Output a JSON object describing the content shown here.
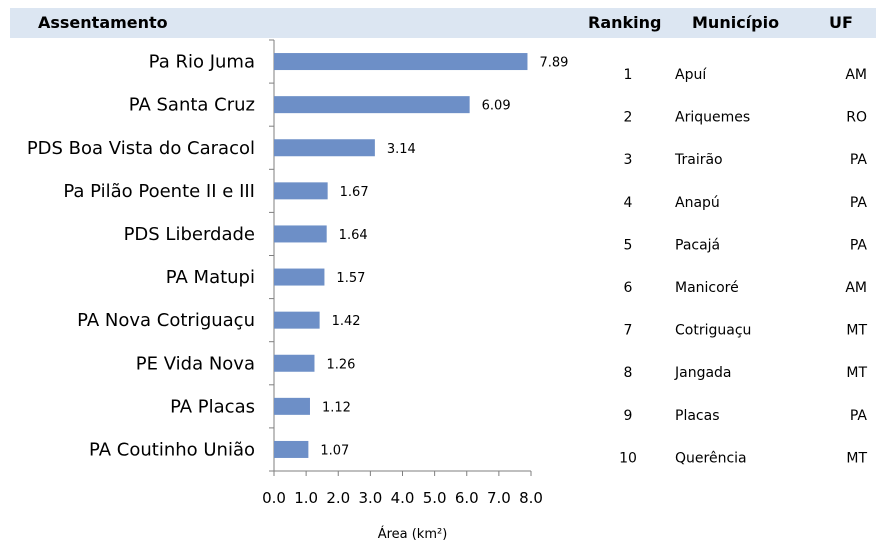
{
  "header": {
    "assentamento": "Assentamento",
    "ranking": "Ranking",
    "municipio": "Município",
    "uf": "UF"
  },
  "colors": {
    "bar": "#6d8fc7",
    "header_band": "#dce6f2",
    "axis": "#7f7f7f"
  },
  "chart_data": {
    "type": "bar",
    "orientation": "horizontal",
    "categories": [
      "Pa Rio Juma",
      "PA Santa Cruz",
      "PDS Boa Vista do Caracol",
      "Pa Pilão Poente II e III",
      "PDS Liberdade",
      "PA Matupi",
      "PA Nova Cotriguaçu",
      "PE Vida Nova",
      "PA Placas",
      "PA Coutinho União"
    ],
    "values": [
      7.89,
      6.09,
      3.14,
      1.67,
      1.64,
      1.57,
      1.42,
      1.26,
      1.12,
      1.07
    ],
    "value_labels": [
      "7.89",
      "6.09",
      "3.14",
      "1.67",
      "1.64",
      "1.57",
      "1.42",
      "1.26",
      "1.12",
      "1.07"
    ],
    "xlabel": "Área (km²)",
    "ylabel": "",
    "xlim": [
      0,
      8
    ],
    "x_ticks": [
      "0.0",
      "1.0",
      "2.0",
      "3.0",
      "4.0",
      "5.0",
      "6.0",
      "7.0",
      "8.0"
    ],
    "grid": false
  },
  "ranking_table": {
    "rows": [
      {
        "rank": "1",
        "municipio": "Apuí",
        "uf": "AM"
      },
      {
        "rank": "2",
        "municipio": "Ariquemes",
        "uf": "RO"
      },
      {
        "rank": "3",
        "municipio": "Trairão",
        "uf": "PA"
      },
      {
        "rank": "4",
        "municipio": "Anapú",
        "uf": "PA"
      },
      {
        "rank": "5",
        "municipio": "Pacajá",
        "uf": "PA"
      },
      {
        "rank": "6",
        "municipio": "Manicoré",
        "uf": "AM"
      },
      {
        "rank": "7",
        "municipio": "Cotriguaçu",
        "uf": "MT"
      },
      {
        "rank": "8",
        "municipio": "Jangada",
        "uf": "MT"
      },
      {
        "rank": "9",
        "municipio": "Placas",
        "uf": "PA"
      },
      {
        "rank": "10",
        "municipio": "Querência",
        "uf": "MT"
      }
    ]
  }
}
